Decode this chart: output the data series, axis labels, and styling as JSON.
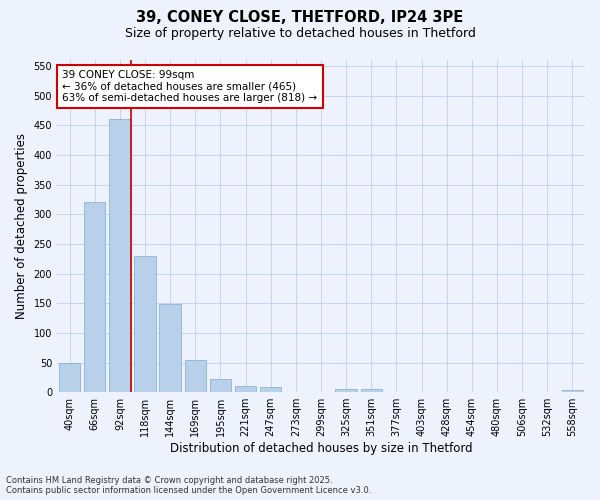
{
  "title_line1": "39, CONEY CLOSE, THETFORD, IP24 3PE",
  "title_line2": "Size of property relative to detached houses in Thetford",
  "xlabel": "Distribution of detached houses by size in Thetford",
  "ylabel": "Number of detached properties",
  "categories": [
    "40sqm",
    "66sqm",
    "92sqm",
    "118sqm",
    "144sqm",
    "169sqm",
    "195sqm",
    "221sqm",
    "247sqm",
    "273sqm",
    "299sqm",
    "325sqm",
    "351sqm",
    "377sqm",
    "403sqm",
    "428sqm",
    "454sqm",
    "480sqm",
    "506sqm",
    "532sqm",
    "558sqm"
  ],
  "values": [
    50,
    320,
    460,
    230,
    148,
    55,
    22,
    10,
    8,
    1,
    0,
    5,
    5,
    1,
    0,
    0,
    0,
    0,
    0,
    0,
    3
  ],
  "bar_color": "#b8d0ea",
  "bar_edge_color": "#7aaed4",
  "vline_x_index": 2,
  "vline_color": "#cc0000",
  "annotation_text": "39 CONEY CLOSE: 99sqm\n← 36% of detached houses are smaller (465)\n63% of semi-detached houses are larger (818) →",
  "annotation_box_color": "#ffffff",
  "annotation_box_edge_color": "#cc0000",
  "ylim": [
    0,
    560
  ],
  "yticks": [
    0,
    50,
    100,
    150,
    200,
    250,
    300,
    350,
    400,
    450,
    500,
    550
  ],
  "footer_line1": "Contains HM Land Registry data © Crown copyright and database right 2025.",
  "footer_line2": "Contains public sector information licensed under the Open Government Licence v3.0.",
  "background_color": "#eef2fc",
  "grid_color": "#c5d5ee",
  "title_fontsize": 10.5,
  "subtitle_fontsize": 9,
  "axis_label_fontsize": 8.5,
  "tick_fontsize": 7,
  "annotation_fontsize": 7.5,
  "footer_fontsize": 6
}
